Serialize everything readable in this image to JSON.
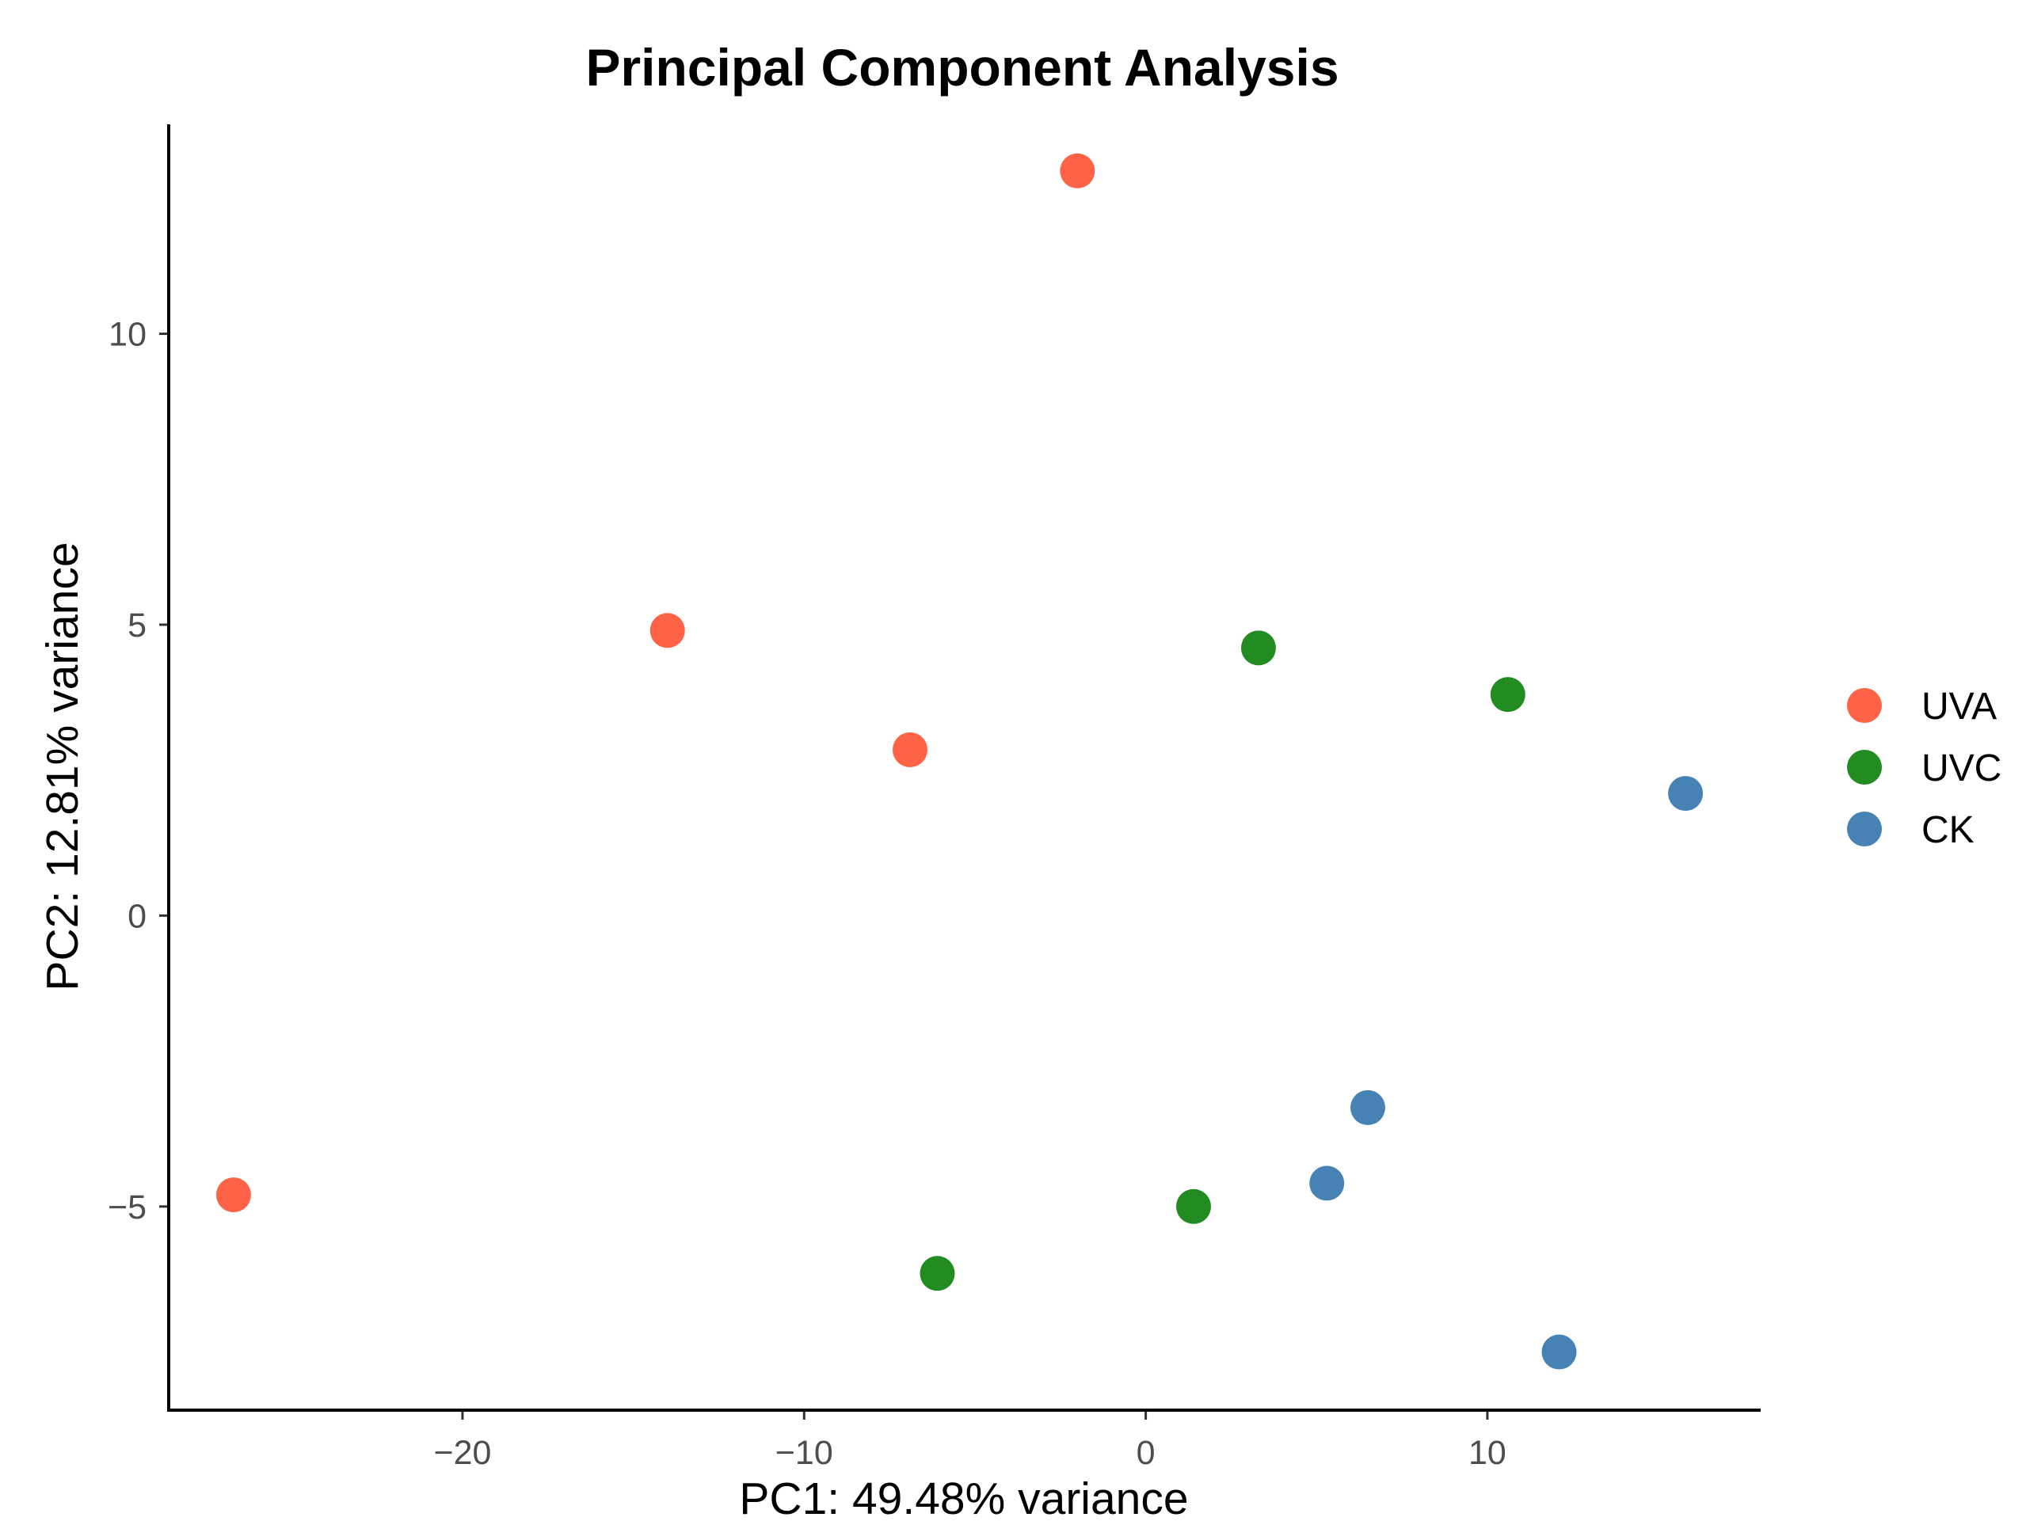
{
  "chart_data": {
    "type": "scatter",
    "title": "Principal Component Analysis",
    "xlabel": "PC1: 49.48% variance",
    "ylabel": "PC2: 12.81% variance",
    "xlim": [
      -28.6,
      18.0
    ],
    "ylim": [
      -8.5,
      13.6
    ],
    "x_ticks": [
      -20,
      -10,
      0,
      10
    ],
    "x_tick_labels": [
      "−20",
      "−10",
      "0",
      "10"
    ],
    "y_ticks": [
      -5,
      0,
      5,
      10
    ],
    "y_tick_labels": [
      "−5",
      "0",
      "5",
      "10"
    ],
    "grid": false,
    "legend_position": "right",
    "series": [
      {
        "name": "UVA",
        "color": "#ff6347",
        "points": [
          {
            "x": -2.0,
            "y": 12.8
          },
          {
            "x": -14.0,
            "y": 4.9
          },
          {
            "x": -6.9,
            "y": 2.85
          },
          {
            "x": -26.7,
            "y": -4.8
          }
        ]
      },
      {
        "name": "UVC",
        "color": "#228b22",
        "points": [
          {
            "x": 3.3,
            "y": 4.6
          },
          {
            "x": 10.6,
            "y": 3.8
          },
          {
            "x": 1.4,
            "y": -5.0
          },
          {
            "x": -6.1,
            "y": -6.15
          }
        ]
      },
      {
        "name": "CK",
        "color": "#4682b4",
        "points": [
          {
            "x": 15.8,
            "y": 2.1
          },
          {
            "x": 6.5,
            "y": -3.3
          },
          {
            "x": 5.3,
            "y": -4.6
          },
          {
            "x": 12.1,
            "y": -7.5
          }
        ]
      }
    ]
  }
}
